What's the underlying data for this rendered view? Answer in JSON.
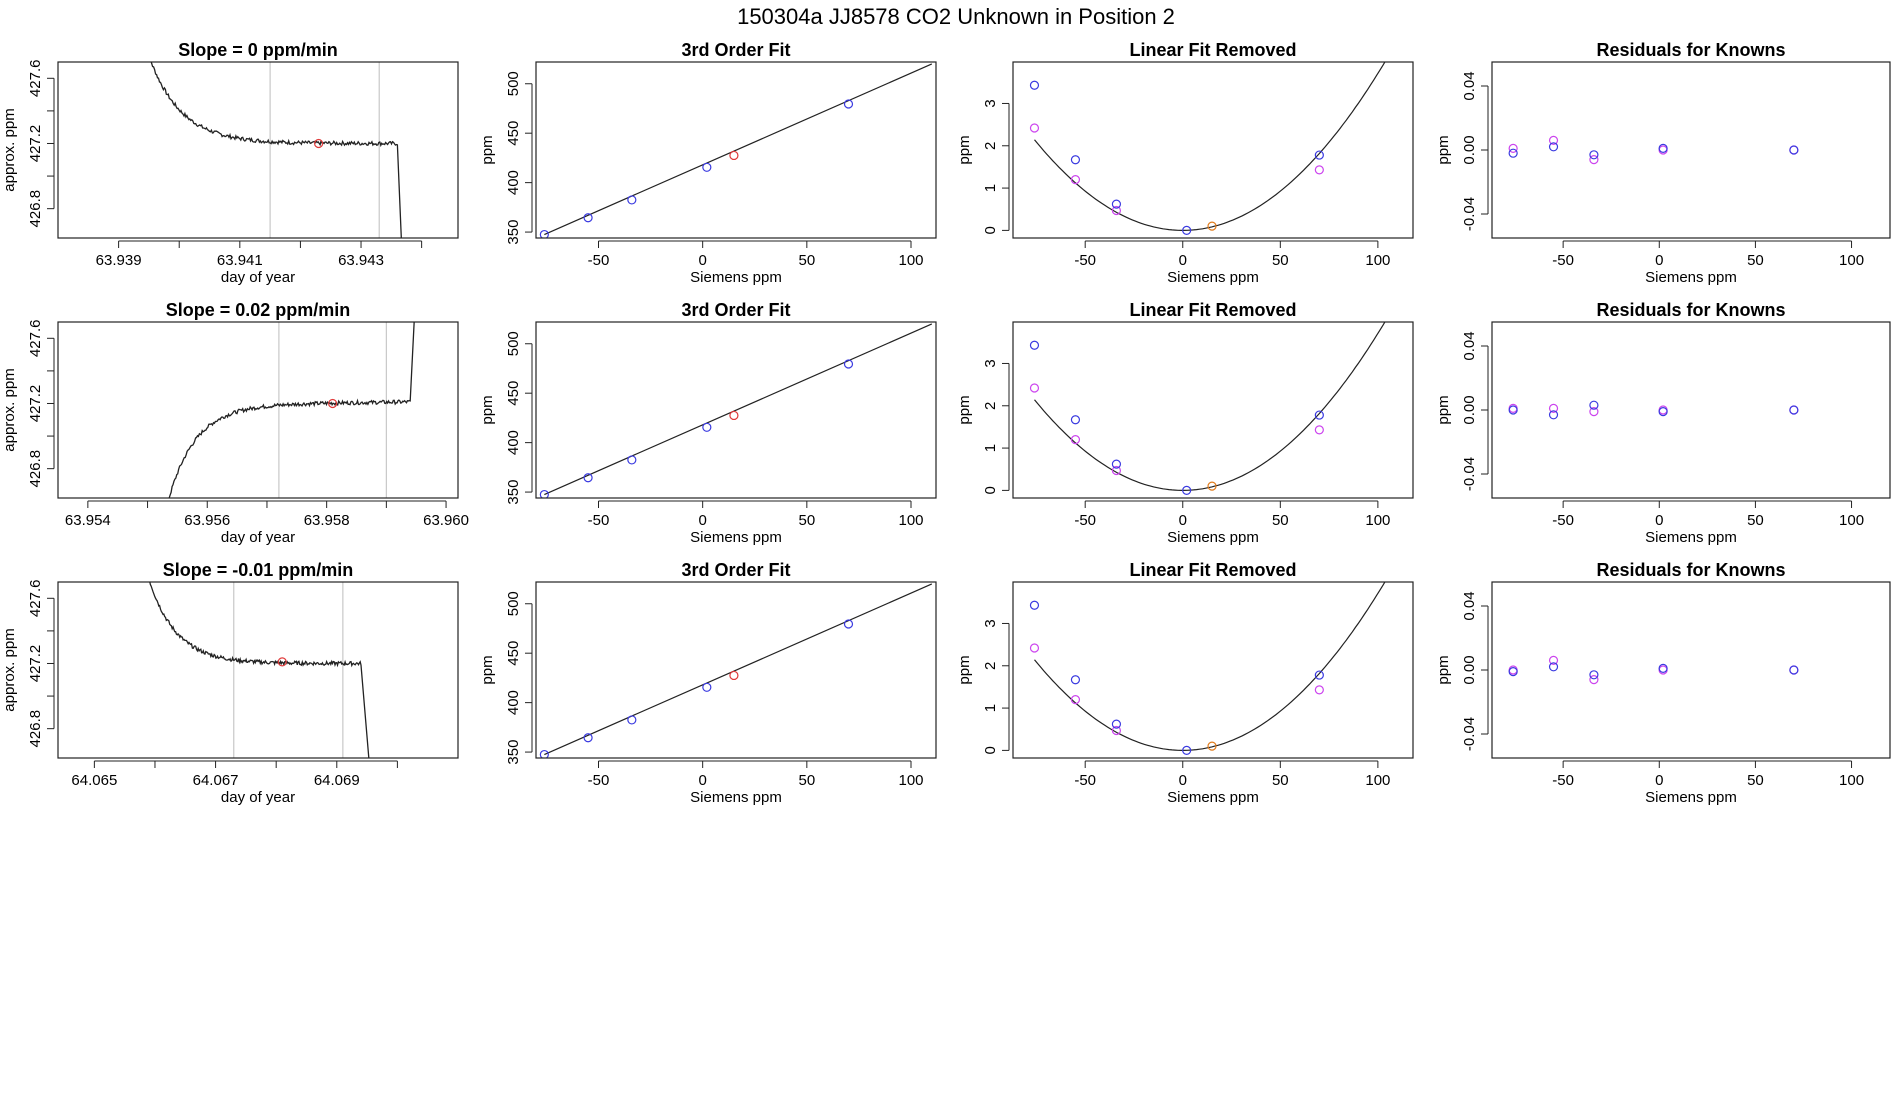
{
  "page_title": "150304a     JJ8578   CO2 Unknown in Position  2",
  "colors": {
    "blue": "#3a3ae0",
    "red": "#e03a3a",
    "magenta": "#cc44ee",
    "orange": "#e07a1a",
    "line": "#222222",
    "vline": "#c8c8c8"
  },
  "chart_data": [
    {
      "type": "line",
      "title": "Slope =  0  ppm/min",
      "xlabel": "day of year",
      "ylabel": "approx. ppm",
      "xlim": [
        63.938,
        63.9446
      ],
      "ylim": [
        426.62,
        427.7
      ],
      "xticks": [
        "63.939",
        "63.941",
        "63.943"
      ],
      "xtick_values": [
        63.939,
        63.94,
        63.941,
        63.942,
        63.943,
        63.944
      ],
      "yticks": [
        "426.8",
        "427.2",
        "427.6"
      ],
      "ytick_values": [
        426.8,
        427.0,
        427.2,
        427.4,
        427.6
      ],
      "vlines": [
        63.9415,
        63.9433
      ],
      "marker": {
        "x": 63.9423,
        "y": 427.2
      },
      "profile": "plateau",
      "trace": {
        "x0": 63.9394,
        "x_drop": 63.9436,
        "drop_end": 63.9437,
        "level": 427.2,
        "noise": 0.012,
        "start": 427.85
      }
    },
    {
      "type": "scatter",
      "title": "3rd Order Fit",
      "xlabel": "Siemens ppm",
      "ylabel": "ppm",
      "xlim": [
        -80,
        112
      ],
      "ylim": [
        344,
        522
      ],
      "xticks": [
        "-50",
        "0",
        "50",
        "100"
      ],
      "xtick_values": [
        -50,
        0,
        50,
        100
      ],
      "yticks": [
        "350",
        "400",
        "450",
        "500"
      ],
      "ytick_values": [
        350,
        400,
        450,
        500
      ],
      "known_x": [
        -76,
        -55,
        -34,
        2,
        70
      ],
      "known_y": [
        347.5,
        364.5,
        382.5,
        415.5,
        479.5
      ],
      "unknown": {
        "x": 15,
        "y": 427.5
      },
      "fit_line": [
        [
          -76,
          347.5
        ],
        [
          110,
          520
        ]
      ]
    },
    {
      "type": "scatter",
      "title": "Linear Fit Removed",
      "xlabel": "Siemens ppm",
      "ylabel": "ppm",
      "xlim": [
        -87,
        118
      ],
      "ylim": [
        -0.18,
        3.98
      ],
      "xticks": [
        "-50",
        "0",
        "50",
        "100"
      ],
      "xtick_values": [
        -50,
        0,
        50,
        100
      ],
      "yticks": [
        "0",
        "1",
        "2",
        "3"
      ],
      "ytick_values": [
        0,
        1,
        2,
        3
      ],
      "known_x": [
        -76,
        -55,
        -34,
        2,
        70
      ],
      "known_y": [
        3.43,
        1.67,
        0.62,
        0.0,
        1.78
      ],
      "alt_x": [
        -76,
        -55,
        -34,
        70
      ],
      "alt_y": [
        2.42,
        1.2,
        0.47,
        1.43
      ],
      "unknown": {
        "x": 15,
        "y": 0.1
      },
      "curve": {
        "vertex": 0,
        "a": 0.000371,
        "from": -76,
        "to": 112
      }
    },
    {
      "type": "scatter",
      "title": "Residuals for Knowns",
      "xlabel": "Siemens ppm",
      "ylabel": "ppm",
      "xlim": [
        -87,
        120
      ],
      "ylim": [
        -0.055,
        0.055
      ],
      "xticks": [
        "-50",
        "0",
        "50",
        "100"
      ],
      "xtick_values": [
        -50,
        0,
        50,
        100
      ],
      "yticks": [
        "-0.04",
        "0.00",
        "0.04"
      ],
      "ytick_values": [
        -0.04,
        0.0,
        0.04
      ],
      "known_x": [
        -76,
        -55,
        -34,
        2,
        70
      ],
      "known_y": [
        -0.002,
        0.002,
        -0.003,
        0.001,
        0.0
      ],
      "alt_x": [
        -76,
        -55,
        -34,
        2,
        70
      ],
      "alt_y": [
        0.001,
        0.006,
        -0.006,
        0.0,
        0.0
      ]
    },
    {
      "type": "line",
      "title": "Slope =  0.02  ppm/min",
      "xlabel": "day of year",
      "ylabel": "approx. ppm",
      "xlim": [
        63.9535,
        63.9602
      ],
      "ylim": [
        426.62,
        427.7
      ],
      "xticks": [
        "63.954",
        "63.956",
        "63.958",
        "63.960"
      ],
      "xtick_values": [
        63.954,
        63.955,
        63.956,
        63.957,
        63.958,
        63.959,
        63.96
      ],
      "yticks": [
        "426.8",
        "427.2",
        "427.6"
      ],
      "ytick_values": [
        426.8,
        427.0,
        427.2,
        427.4,
        427.6
      ],
      "vlines": [
        63.9572,
        63.959
      ],
      "marker": {
        "x": 63.9581,
        "y": 427.2
      },
      "profile": "rise",
      "trace": {
        "x0": 63.9553,
        "x_drop": 63.9594,
        "drop_end": 63.9595,
        "level": 427.2,
        "noise": 0.012,
        "start": 426.55
      }
    },
    {
      "type": "scatter",
      "title": "3rd Order Fit",
      "xlabel": "Siemens ppm",
      "ylabel": "ppm",
      "xlim": [
        -80,
        112
      ],
      "ylim": [
        344,
        522
      ],
      "xticks": [
        "-50",
        "0",
        "50",
        "100"
      ],
      "xtick_values": [
        -50,
        0,
        50,
        100
      ],
      "yticks": [
        "350",
        "400",
        "450",
        "500"
      ],
      "ytick_values": [
        350,
        400,
        450,
        500
      ],
      "known_x": [
        -76,
        -55,
        -34,
        2,
        70
      ],
      "known_y": [
        347.5,
        364.5,
        382.5,
        415.5,
        479.5
      ],
      "unknown": {
        "x": 15,
        "y": 427.5
      },
      "fit_line": [
        [
          -76,
          347.5
        ],
        [
          110,
          520
        ]
      ]
    },
    {
      "type": "scatter",
      "title": "Linear Fit Removed",
      "xlabel": "Siemens ppm",
      "ylabel": "ppm",
      "xlim": [
        -87,
        118
      ],
      "ylim": [
        -0.18,
        3.98
      ],
      "xticks": [
        "-50",
        "0",
        "50",
        "100"
      ],
      "xtick_values": [
        -50,
        0,
        50,
        100
      ],
      "yticks": [
        "0",
        "1",
        "2",
        "3"
      ],
      "ytick_values": [
        0,
        1,
        2,
        3
      ],
      "known_x": [
        -76,
        -55,
        -34,
        2,
        70
      ],
      "known_y": [
        3.43,
        1.67,
        0.62,
        0.0,
        1.78
      ],
      "alt_x": [
        -76,
        -55,
        -34,
        70
      ],
      "alt_y": [
        2.42,
        1.2,
        0.47,
        1.43
      ],
      "unknown": {
        "x": 15,
        "y": 0.1
      },
      "curve": {
        "vertex": 0,
        "a": 0.000371,
        "from": -76,
        "to": 112
      }
    },
    {
      "type": "scatter",
      "title": "Residuals for Knowns",
      "xlabel": "Siemens ppm",
      "ylabel": "ppm",
      "xlim": [
        -87,
        120
      ],
      "ylim": [
        -0.055,
        0.055
      ],
      "xticks": [
        "-50",
        "0",
        "50",
        "100"
      ],
      "xtick_values": [
        -50,
        0,
        50,
        100
      ],
      "yticks": [
        "-0.04",
        "0.00",
        "0.04"
      ],
      "ytick_values": [
        -0.04,
        0.0,
        0.04
      ],
      "known_x": [
        -76,
        -55,
        -34,
        2,
        70
      ],
      "known_y": [
        0.0,
        -0.003,
        0.003,
        -0.001,
        0.0
      ],
      "alt_x": [
        -76,
        -55,
        -34,
        2,
        70
      ],
      "alt_y": [
        0.001,
        0.001,
        -0.001,
        0.0,
        0.0
      ]
    },
    {
      "type": "line",
      "title": "Slope =  -0.01  ppm/min",
      "xlabel": "day of year",
      "ylabel": "approx. ppm",
      "xlim": [
        64.0644,
        64.071
      ],
      "ylim": [
        426.62,
        427.7
      ],
      "xticks": [
        "64.065",
        "64.067",
        "64.069"
      ],
      "xtick_values": [
        64.065,
        64.066,
        64.067,
        64.068,
        64.069,
        64.07
      ],
      "yticks": [
        "426.8",
        "427.2",
        "427.6"
      ],
      "ytick_values": [
        426.8,
        427.0,
        427.2,
        427.4,
        427.6
      ],
      "vlines": [
        64.0673,
        64.0691
      ],
      "marker": {
        "x": 64.0681,
        "y": 427.21
      },
      "profile": "plateau",
      "trace": {
        "x0": 64.0658,
        "x_drop": 64.0694,
        "drop_end": 64.0696,
        "level": 427.2,
        "noise": 0.012,
        "start": 427.85
      }
    },
    {
      "type": "scatter",
      "title": "3rd Order Fit",
      "xlabel": "Siemens ppm",
      "ylabel": "ppm",
      "xlim": [
        -80,
        112
      ],
      "ylim": [
        344,
        522
      ],
      "xticks": [
        "-50",
        "0",
        "50",
        "100"
      ],
      "xtick_values": [
        -50,
        0,
        50,
        100
      ],
      "yticks": [
        "350",
        "400",
        "450",
        "500"
      ],
      "ytick_values": [
        350,
        400,
        450,
        500
      ],
      "known_x": [
        -76,
        -55,
        -34,
        2,
        70
      ],
      "known_y": [
        347.5,
        364.5,
        382.5,
        415.5,
        479.5
      ],
      "unknown": {
        "x": 15,
        "y": 427.5
      },
      "fit_line": [
        [
          -76,
          347.5
        ],
        [
          110,
          520
        ]
      ]
    },
    {
      "type": "scatter",
      "title": "Linear Fit Removed",
      "xlabel": "Siemens ppm",
      "ylabel": "ppm",
      "xlim": [
        -87,
        118
      ],
      "ylim": [
        -0.18,
        3.98
      ],
      "xticks": [
        "-50",
        "0",
        "50",
        "100"
      ],
      "xtick_values": [
        -50,
        0,
        50,
        100
      ],
      "yticks": [
        "0",
        "1",
        "2",
        "3"
      ],
      "ytick_values": [
        0,
        1,
        2,
        3
      ],
      "known_x": [
        -76,
        -55,
        -34,
        2,
        70
      ],
      "known_y": [
        3.43,
        1.67,
        0.62,
        0.0,
        1.78
      ],
      "alt_x": [
        -76,
        -55,
        -34,
        70
      ],
      "alt_y": [
        2.42,
        1.2,
        0.47,
        1.43
      ],
      "unknown": {
        "x": 15,
        "y": 0.1
      },
      "curve": {
        "vertex": 0,
        "a": 0.000371,
        "from": -76,
        "to": 112
      }
    },
    {
      "type": "scatter",
      "title": "Residuals for Knowns",
      "xlabel": "Siemens ppm",
      "ylabel": "ppm",
      "xlim": [
        -87,
        120
      ],
      "ylim": [
        -0.055,
        0.055
      ],
      "xticks": [
        "-50",
        "0",
        "50",
        "100"
      ],
      "xtick_values": [
        -50,
        0,
        50,
        100
      ],
      "yticks": [
        "-0.04",
        "0.00",
        "0.04"
      ],
      "ytick_values": [
        -0.04,
        0.0,
        0.04
      ],
      "known_x": [
        -76,
        -55,
        -34,
        2,
        70
      ],
      "known_y": [
        -0.001,
        0.002,
        -0.003,
        0.001,
        0.0
      ],
      "alt_x": [
        -76,
        -55,
        -34,
        2,
        70
      ],
      "alt_y": [
        0.0,
        0.006,
        -0.006,
        0.0,
        0.0
      ]
    }
  ]
}
